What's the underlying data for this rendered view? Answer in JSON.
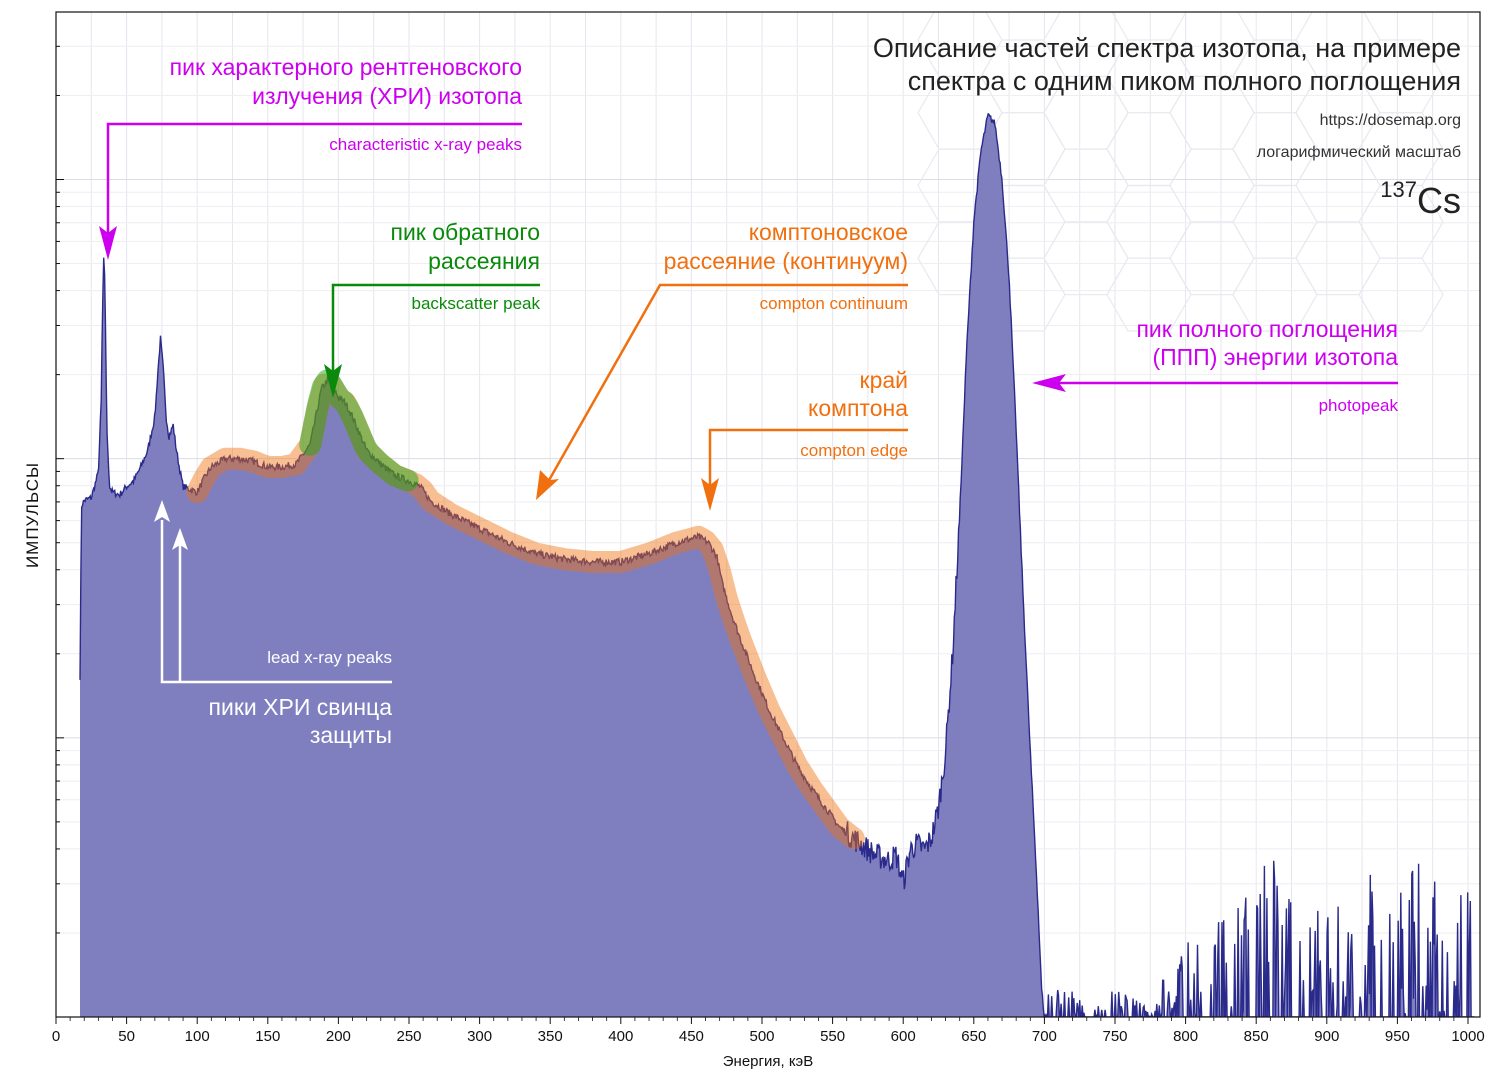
{
  "chart_data": {
    "type": "area",
    "title": "Описание частей спектра изотопа, на примере спектра с одним пиком полного поглощения",
    "title_lines": [
      "Описание частей спектра изотопа, на примере",
      "спектра с одним пиком полного поглощения"
    ],
    "source_url": "https://dosemap.org",
    "scale_note": "логарифмический масштаб",
    "isotope": {
      "mass": "137",
      "symbol": "Cs"
    },
    "xlabel": "Энергия, кэВ",
    "ylabel": "ИМПУЛЬСЫ",
    "xlim": [
      0,
      1005
    ],
    "yscale": "log",
    "ylim_decades": [
      0,
      3.6
    ],
    "x_ticks": [
      "0",
      "50",
      "100",
      "150",
      "200",
      "250",
      "300",
      "350",
      "400",
      "450",
      "500",
      "550",
      "600",
      "650",
      "700",
      "750",
      "800",
      "850",
      "900",
      "950",
      "1000"
    ],
    "x_tick_values": [
      0,
      50,
      100,
      150,
      200,
      250,
      300,
      350,
      400,
      450,
      500,
      550,
      600,
      650,
      700,
      750,
      800,
      850,
      900,
      950,
      1000
    ],
    "grid": true,
    "colors": {
      "fill": "#7f7fc0",
      "line": "#2a2a8a",
      "xray": "#cc00ee",
      "backscatter": "#0a8a0a",
      "compton": "#f07010",
      "lead": "#ffffff"
    },
    "series": [
      {
        "x": [
          17,
          18,
          20,
          25,
          30,
          32,
          33,
          34,
          35,
          36,
          38,
          40,
          45,
          50,
          55,
          60,
          65,
          70,
          72,
          74,
          76,
          78,
          80,
          83,
          85,
          88,
          90,
          95,
          100,
          105,
          110,
          120,
          130,
          140,
          150,
          160,
          170,
          180,
          188,
          192,
          196,
          200,
          205,
          210,
          220,
          230,
          240,
          250,
          258,
          265,
          280,
          300,
          320,
          340,
          360,
          380,
          400,
          420,
          440,
          455,
          462,
          468,
          472,
          478,
          485,
          495,
          505,
          515,
          525,
          535,
          545,
          555,
          565,
          570,
          575,
          580,
          585,
          590,
          595,
          600,
          605,
          610,
          615,
          620,
          625,
          630,
          635,
          640,
          645,
          650,
          655,
          660,
          665,
          670,
          675,
          680,
          685,
          690,
          695,
          698,
          700,
          705,
          710,
          720,
          730,
          750,
          770,
          800,
          830,
          840,
          850,
          860,
          880,
          900,
          920,
          940,
          950,
          960,
          980,
          1000,
          1005
        ],
        "y": [
          1.22,
          1.83,
          1.85,
          1.86,
          1.95,
          2.2,
          2.55,
          2.75,
          2.5,
          2.1,
          1.9,
          1.88,
          1.87,
          1.9,
          1.92,
          1.97,
          2.03,
          2.15,
          2.3,
          2.43,
          2.32,
          2.15,
          2.08,
          2.12,
          2.04,
          1.95,
          1.9,
          1.89,
          1.88,
          1.93,
          1.97,
          2.0,
          2.0,
          1.99,
          1.97,
          1.97,
          1.98,
          2.05,
          2.25,
          2.28,
          2.26,
          2.22,
          2.2,
          2.15,
          2.03,
          1.98,
          1.94,
          1.92,
          1.9,
          1.85,
          1.8,
          1.75,
          1.7,
          1.66,
          1.64,
          1.63,
          1.63,
          1.66,
          1.7,
          1.72,
          1.7,
          1.65,
          1.55,
          1.45,
          1.35,
          1.22,
          1.1,
          1.0,
          0.9,
          0.82,
          0.75,
          0.68,
          0.64,
          0.62,
          0.6,
          0.58,
          0.57,
          0.56,
          0.58,
          0.48,
          0.6,
          0.62,
          0.6,
          0.64,
          0.75,
          0.95,
          1.3,
          1.8,
          2.4,
          2.85,
          3.1,
          3.23,
          3.2,
          3.0,
          2.65,
          2.1,
          1.5,
          0.95,
          0.45,
          0.1,
          0.0,
          0.08,
          0.04,
          0.06,
          0.0,
          0.05,
          0.02,
          0.12,
          0.2,
          0.3,
          0.22,
          0.28,
          0.2,
          0.18,
          0.24,
          0.3,
          0.22,
          0.32,
          0.2,
          0.24,
          0.1
        ]
      }
    ],
    "annotations": {
      "xray": {
        "ru": [
          "пик характерного рентгеновского",
          "излучения (ХРИ) изотопа"
        ],
        "en": "characteristic  x-ray  peaks"
      },
      "backscatter": {
        "ru": [
          "пик обратного",
          "рассеяния"
        ],
        "en": "backscatter peak"
      },
      "compton_continuum": {
        "ru": [
          "комптоновское",
          "рассеяние (континуум)"
        ],
        "en": "compton continuum"
      },
      "compton_edge": {
        "ru": [
          "край",
          "комптона"
        ],
        "en": "compton edge"
      },
      "photopeak": {
        "ru": [
          "пик полного поглощения",
          "(ППП) энергии изотопа"
        ],
        "en": "photopeak"
      },
      "lead": {
        "ru": [
          "пики ХРИ свинца",
          "защиты"
        ],
        "en": "lead x-ray peaks"
      }
    }
  }
}
